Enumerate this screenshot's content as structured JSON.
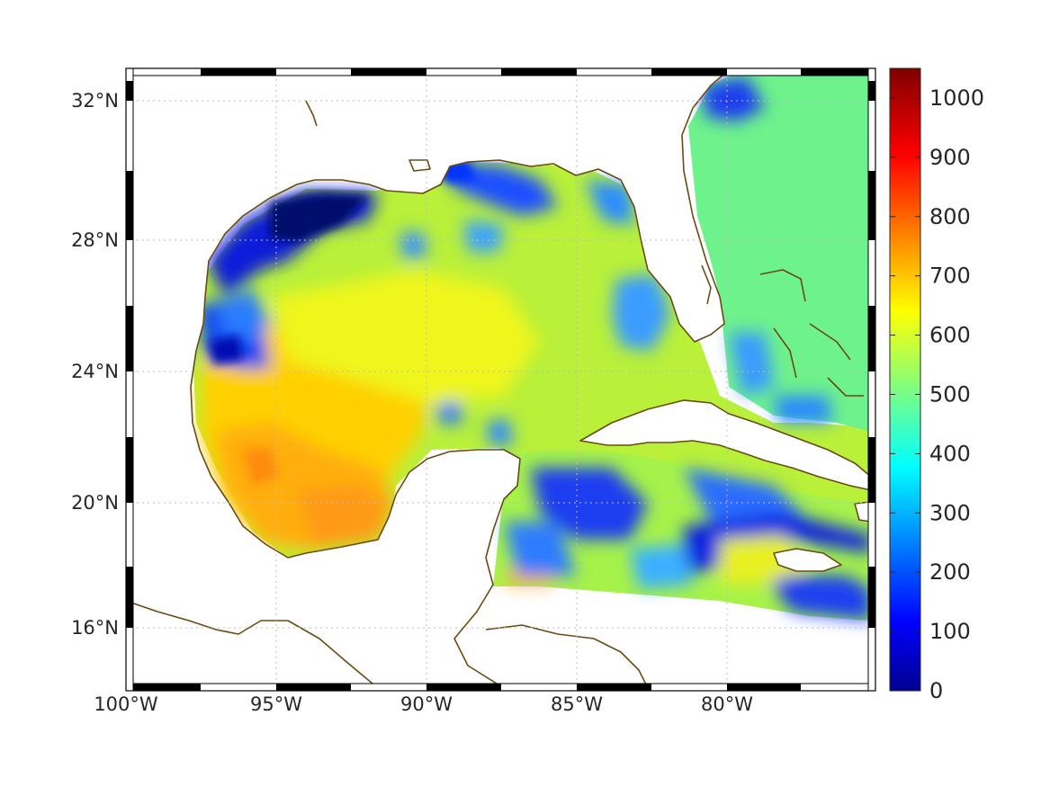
{
  "chart_data": {
    "type": "heatmap",
    "title": "",
    "xlabel": "",
    "ylabel": "",
    "x_ticks": [
      "100°W",
      "95°W",
      "90°W",
      "85°W",
      "80°W"
    ],
    "y_ticks": [
      "32°N",
      "28°N",
      "24°N",
      "20°N",
      "16°N"
    ],
    "lon_range": [
      -100,
      -75
    ],
    "lat_range": [
      14.3,
      33
    ],
    "colorbar": {
      "range": [
        0,
        1050
      ],
      "ticks": [
        "0",
        "100",
        "200",
        "300",
        "400",
        "500",
        "600",
        "700",
        "800",
        "900",
        "1000"
      ],
      "colormap": "jet"
    },
    "grid": true,
    "regions_approx_value": [
      {
        "region": "western Gulf / Bay of Campeche",
        "value": 700
      },
      {
        "region": "central Gulf",
        "value": 640
      },
      {
        "region": "eastern Gulf",
        "value": 600
      },
      {
        "region": "Atlantic east of Florida",
        "value": 500
      },
      {
        "region": "NW Gulf shelf (Texas-Louisiana)",
        "value": 60
      },
      {
        "region": "Caribbean Sea",
        "value": 450
      }
    ]
  },
  "colors": {
    "coastline": "#6b4a12"
  }
}
